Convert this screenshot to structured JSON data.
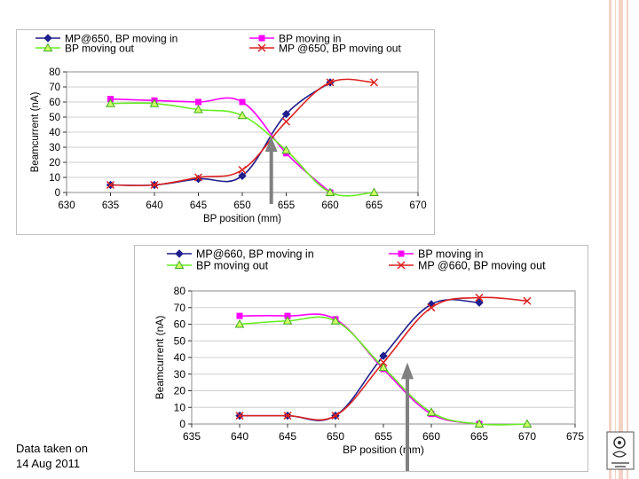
{
  "caption": {
    "line1": "Data taken on",
    "line2": "14 Aug 2011"
  },
  "colors": {
    "blue": "#1f1f8c",
    "magenta": "#ff00ff",
    "green": "#66ee22",
    "red": "#dd2222",
    "arrow": "#808080",
    "stripe": "#f4d2c4"
  },
  "chart_data": [
    {
      "type": "line",
      "title": "",
      "xlabel": "BP position (mm)",
      "ylabel": "Beamcurrent (nA)",
      "xlim": [
        630,
        670
      ],
      "ylim": [
        0,
        80
      ],
      "xticks": [
        "630",
        "635",
        "640",
        "645",
        "650",
        "655",
        "660",
        "665",
        "670"
      ],
      "yticks": [
        "0",
        "10",
        "20",
        "30",
        "40",
        "50",
        "60",
        "70",
        "80"
      ],
      "annotation_arrow_x": 653.3,
      "series": [
        {
          "name": "MP@650, BP moving in",
          "color": "#1f1f8c",
          "marker": "diamond",
          "x": [
            635,
            640,
            645,
            650,
            655,
            660
          ],
          "y": [
            5,
            5,
            9,
            11,
            52,
            73
          ]
        },
        {
          "name": "BP moving in",
          "color": "#ff00ff",
          "marker": "square",
          "x": [
            635,
            640,
            645,
            650,
            655,
            660
          ],
          "y": [
            62,
            61,
            60,
            60,
            26,
            0
          ]
        },
        {
          "name": "BP moving out",
          "color": "#66ee22",
          "marker": "triangle",
          "x": [
            635,
            640,
            645,
            650,
            655,
            660,
            665
          ],
          "y": [
            59,
            59,
            55,
            51,
            28,
            0,
            0
          ]
        },
        {
          "name": "MP @650, BP moving out",
          "color": "#dd2222",
          "marker": "x",
          "x": [
            635,
            640,
            645,
            650,
            655,
            660,
            665
          ],
          "y": [
            5,
            5,
            10,
            15,
            47,
            73,
            73
          ]
        }
      ]
    },
    {
      "type": "line",
      "title": "",
      "xlabel": "BP position (mm)",
      "ylabel": "Beamcurrent (nA)",
      "xlim": [
        635,
        675
      ],
      "ylim": [
        0,
        80
      ],
      "xticks": [
        "635",
        "640",
        "645",
        "650",
        "655",
        "660",
        "665",
        "670",
        "675"
      ],
      "yticks": [
        "0",
        "10",
        "20",
        "30",
        "40",
        "50",
        "60",
        "70",
        "80"
      ],
      "annotation_arrow_x": 657.5,
      "series": [
        {
          "name": "MP@660, BP moving in",
          "color": "#1f1f8c",
          "marker": "diamond",
          "x": [
            640,
            645,
            650,
            655,
            660,
            665
          ],
          "y": [
            5,
            5,
            5,
            41,
            72,
            73
          ]
        },
        {
          "name": "BP moving in",
          "color": "#ff00ff",
          "marker": "square",
          "x": [
            640,
            645,
            650,
            655,
            660,
            665
          ],
          "y": [
            65,
            65,
            63,
            33,
            6,
            0
          ]
        },
        {
          "name": "BP moving out",
          "color": "#66ee22",
          "marker": "triangle",
          "x": [
            640,
            645,
            650,
            655,
            660,
            665,
            670
          ],
          "y": [
            60,
            62,
            62,
            34,
            7,
            0,
            0
          ]
        },
        {
          "name": "MP @660, BP moving out",
          "color": "#dd2222",
          "marker": "x",
          "x": [
            640,
            645,
            650,
            655,
            660,
            665,
            670
          ],
          "y": [
            5,
            5,
            5,
            37,
            70,
            76,
            74
          ]
        }
      ]
    }
  ]
}
